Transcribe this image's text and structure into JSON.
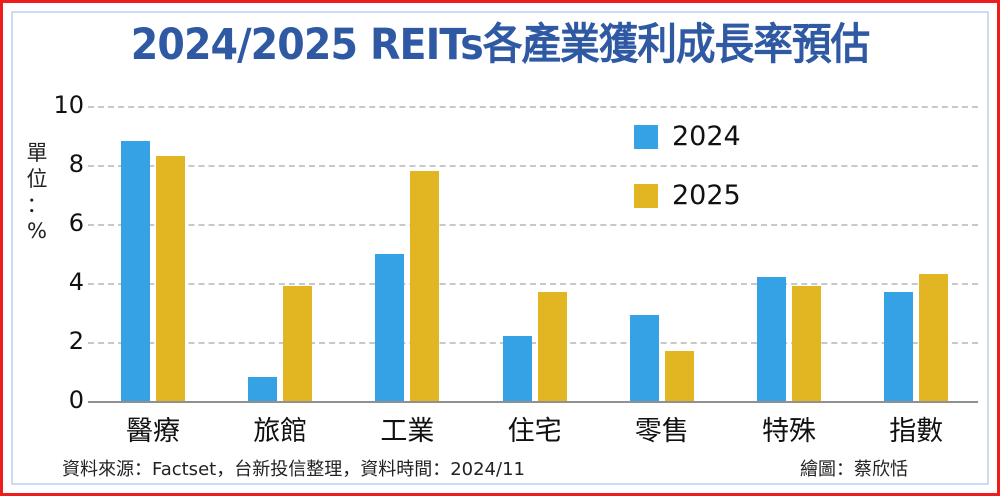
{
  "title": "2024/2025 REITs各產業獲利成長率預估",
  "y_axis_label_lines": [
    "單",
    "位",
    "：",
    "%"
  ],
  "legend": [
    {
      "label": "2024",
      "color": "#36a2e6"
    },
    {
      "label": "2025",
      "color": "#e2b622"
    }
  ],
  "footer": {
    "source": "資料來源：Factset，台新投信整理，資料時間：2024/11",
    "credit": "繪圖：蔡欣恬"
  },
  "colors": {
    "border_red": "#ee1c1c",
    "inner_border": "#c9dcf0",
    "title_blue": "#2f5aa3",
    "bar_2024": "#36a2e6",
    "bar_2025": "#e2b622"
  },
  "chart_data": {
    "type": "bar",
    "title": "2024/2025 REITs各產業獲利成長率預估",
    "xlabel": "",
    "ylabel": "單位：%",
    "categories": [
      "醫療",
      "旅館",
      "工業",
      "住宅",
      "零售",
      "特殊",
      "指數"
    ],
    "series": [
      {
        "name": "2024",
        "color": "#36a2e6",
        "values": [
          8.8,
          0.8,
          5.0,
          2.2,
          2.9,
          4.2,
          3.7
        ]
      },
      {
        "name": "2025",
        "color": "#e2b622",
        "values": [
          8.3,
          3.9,
          7.8,
          3.7,
          1.7,
          3.9,
          4.3
        ]
      }
    ],
    "ylim": [
      0,
      10
    ],
    "yticks": [
      0,
      2,
      4,
      6,
      8,
      10
    ],
    "grid": true,
    "grid_style": "dashed horizontal",
    "legend_position": "upper right (inside plot)",
    "annotations": [
      "資料來源：Factset，台新投信整理，資料時間：2024/11",
      "繪圖：蔡欣恬"
    ]
  }
}
